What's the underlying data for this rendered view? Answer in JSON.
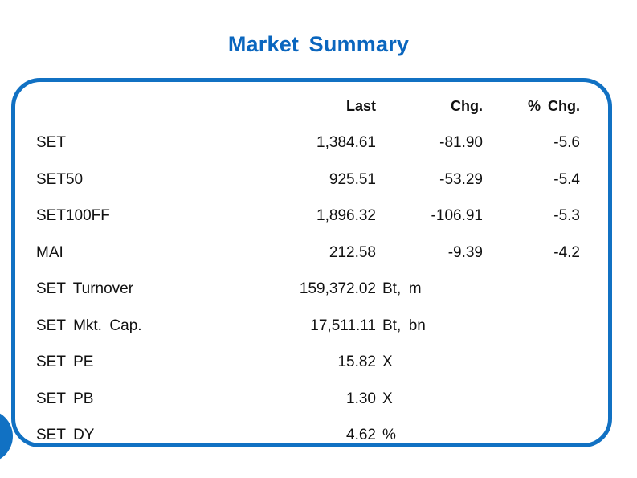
{
  "title": "Market Summary",
  "colors": {
    "accent_blue": "#1171c3",
    "title_blue": "#0a66be",
    "text": "#111111",
    "background": "#ffffff"
  },
  "decorations": {
    "corner_circle": "solid blue circle clipped at bottom-left edge"
  },
  "chart_data": {
    "type": "table",
    "title": "Market Summary",
    "headers": {
      "label": "",
      "last": "Last",
      "chg": "Chg.",
      "pchg": "% Chg."
    },
    "rows": [
      {
        "label": "SET",
        "last": "1,384.61",
        "unit": "",
        "chg": "-81.90",
        "pchg": "-5.6"
      },
      {
        "label": "SET50",
        "last": "925.51",
        "unit": "",
        "chg": "-53.29",
        "pchg": "-5.4"
      },
      {
        "label": "SET100FF",
        "last": "1,896.32",
        "unit": "",
        "chg": "-106.91",
        "pchg": "-5.3"
      },
      {
        "label": "MAI",
        "last": "212.58",
        "unit": "",
        "chg": "-9.39",
        "pchg": "-4.2"
      },
      {
        "label": "SET Turnover",
        "last": "159,372.02",
        "unit": "Bt, m",
        "chg": "",
        "pchg": ""
      },
      {
        "label": "SET Mkt. Cap.",
        "last": "17,511.11",
        "unit": "Bt, bn",
        "chg": "",
        "pchg": ""
      },
      {
        "label": "SET PE",
        "last": "15.82",
        "unit": "X",
        "chg": "",
        "pchg": ""
      },
      {
        "label": "SET PB",
        "last": "1.30",
        "unit": "X",
        "chg": "",
        "pchg": ""
      },
      {
        "label": "SET DY",
        "last": "4.62",
        "unit": "%",
        "chg": "",
        "pchg": ""
      }
    ]
  }
}
